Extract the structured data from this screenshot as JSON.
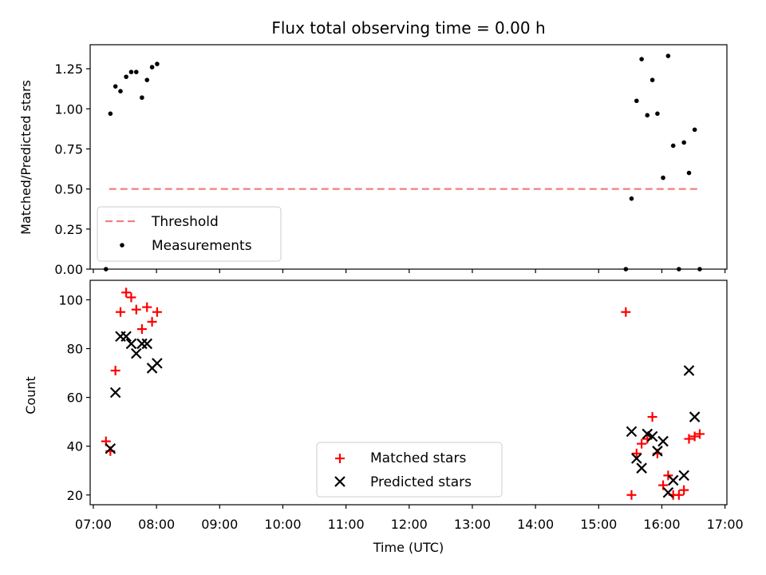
{
  "chart_data": [
    {
      "type": "scatter",
      "title": "Flux total observing time = 0.00 h",
      "xlabel": "",
      "ylabel": "Matched/Predicted stars",
      "ylim": [
        0,
        1.4
      ],
      "xlim": [
        6.95,
        17.03
      ],
      "yticks": [
        0.0,
        0.25,
        0.5,
        0.75,
        1.0,
        1.25
      ],
      "ytick_labels": [
        "0.00",
        "0.25",
        "0.50",
        "0.75",
        "1.00",
        "1.25"
      ],
      "threshold": {
        "name": "Threshold",
        "value": 0.5,
        "x": [
          7.25,
          16.58
        ],
        "color": "#f08080"
      },
      "series": [
        {
          "name": "Measurements",
          "color": "#000000",
          "points": [
            [
              7.2,
              0.0
            ],
            [
              7.27,
              0.97
            ],
            [
              7.35,
              1.14
            ],
            [
              7.43,
              1.11
            ],
            [
              7.52,
              1.2
            ],
            [
              7.6,
              1.23
            ],
            [
              7.68,
              1.23
            ],
            [
              7.77,
              1.07
            ],
            [
              7.85,
              1.18
            ],
            [
              7.93,
              1.26
            ],
            [
              8.01,
              1.28
            ],
            [
              15.43,
              0.0
            ],
            [
              15.52,
              0.44
            ],
            [
              15.6,
              1.05
            ],
            [
              15.68,
              1.31
            ],
            [
              15.77,
              0.96
            ],
            [
              15.85,
              1.18
            ],
            [
              15.93,
              0.97
            ],
            [
              16.02,
              0.57
            ],
            [
              16.1,
              1.33
            ],
            [
              16.18,
              0.77
            ],
            [
              16.27,
              0.0
            ],
            [
              16.35,
              0.79
            ],
            [
              16.43,
              0.6
            ],
            [
              16.52,
              0.87
            ],
            [
              16.6,
              0.0
            ]
          ]
        }
      ],
      "legend": {
        "location": "lower-left",
        "entries": [
          "Threshold",
          "Measurements"
        ]
      }
    },
    {
      "type": "scatter",
      "title": "",
      "xlabel": "Time (UTC)",
      "ylabel": "Count",
      "ylim": [
        16,
        108
      ],
      "xlim": [
        6.95,
        17.03
      ],
      "yticks": [
        20,
        40,
        60,
        80,
        100
      ],
      "ytick_labels": [
        "20",
        "40",
        "60",
        "80",
        "100"
      ],
      "xticks": [
        7,
        8,
        9,
        10,
        11,
        12,
        13,
        14,
        15,
        16,
        17
      ],
      "xtick_labels": [
        "07:00",
        "08:00",
        "09:00",
        "10:00",
        "11:00",
        "12:00",
        "13:00",
        "14:00",
        "15:00",
        "16:00",
        "17:00"
      ],
      "series": [
        {
          "name": "Matched stars",
          "color": "#ff0000",
          "marker": "plus",
          "points": [
            [
              7.2,
              42
            ],
            [
              7.27,
              38
            ],
            [
              7.35,
              71
            ],
            [
              7.43,
              95
            ],
            [
              7.52,
              103
            ],
            [
              7.6,
              101
            ],
            [
              7.68,
              96
            ],
            [
              7.77,
              88
            ],
            [
              7.85,
              97
            ],
            [
              7.93,
              91
            ],
            [
              8.01,
              95
            ],
            [
              15.43,
              95
            ],
            [
              15.52,
              20
            ],
            [
              15.6,
              37
            ],
            [
              15.68,
              41
            ],
            [
              15.77,
              43
            ],
            [
              15.85,
              52
            ],
            [
              15.93,
              37
            ],
            [
              16.02,
              24
            ],
            [
              16.1,
              28
            ],
            [
              16.18,
              20
            ],
            [
              16.27,
              20
            ],
            [
              16.35,
              22
            ],
            [
              16.43,
              43
            ],
            [
              16.52,
              44
            ],
            [
              16.6,
              45
            ]
          ]
        },
        {
          "name": "Predicted stars",
          "color": "#000000",
          "marker": "x",
          "points": [
            [
              7.27,
              39
            ],
            [
              7.35,
              62
            ],
            [
              7.43,
              85
            ],
            [
              7.52,
              85
            ],
            [
              7.6,
              82
            ],
            [
              7.68,
              78
            ],
            [
              7.77,
              82
            ],
            [
              7.85,
              82
            ],
            [
              7.93,
              72
            ],
            [
              8.01,
              74
            ],
            [
              15.52,
              46
            ],
            [
              15.6,
              35
            ],
            [
              15.68,
              31
            ],
            [
              15.77,
              45
            ],
            [
              15.85,
              44
            ],
            [
              15.93,
              38
            ],
            [
              16.02,
              42
            ],
            [
              16.1,
              21
            ],
            [
              16.18,
              26
            ],
            [
              16.35,
              28
            ],
            [
              16.43,
              71
            ],
            [
              16.52,
              52
            ]
          ]
        }
      ],
      "legend": {
        "location": "lower-center",
        "entries": [
          "Matched stars",
          "Predicted stars"
        ]
      }
    }
  ]
}
